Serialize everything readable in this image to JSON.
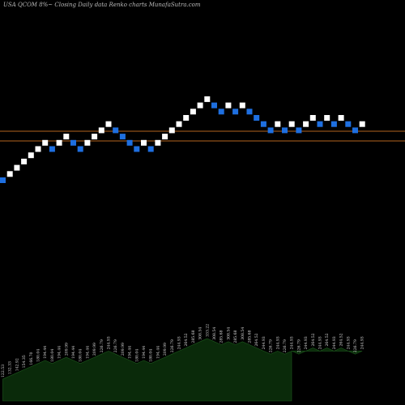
{
  "title": "USA QCOM 8%~  Closing Daily data  Renko  charts MunafaSutra.com",
  "colors": {
    "background": "#000000",
    "up_brick": "#ffffff",
    "down_brick": "#1e6fe0",
    "level_line": "#b3641e",
    "volume_fill": "#0a2a0a",
    "volume_edge": "#1e5a1e"
  },
  "chart_data": {
    "type": "renko",
    "y_scale": "log",
    "ylim": [
      42,
      260
    ],
    "levels": [
      188,
      162
    ],
    "bricks": [
      {
        "close": 122.53,
        "dir": "down"
      },
      {
        "close": 132.33,
        "dir": "up"
      },
      {
        "close": 142.92,
        "dir": "up"
      },
      {
        "close": 154.35,
        "dir": "up"
      },
      {
        "close": 166.7,
        "dir": "up"
      },
      {
        "close": 180.04,
        "dir": "up"
      },
      {
        "close": 194.44,
        "dir": "up"
      },
      {
        "close": 180.04,
        "dir": "down"
      },
      {
        "close": 194.44,
        "dir": "up"
      },
      {
        "close": 209.99,
        "dir": "up"
      },
      {
        "close": 194.44,
        "dir": "down"
      },
      {
        "close": 180.04,
        "dir": "down"
      },
      {
        "close": 194.44,
        "dir": "up"
      },
      {
        "close": 209.99,
        "dir": "up"
      },
      {
        "close": 226.79,
        "dir": "up"
      },
      {
        "close": 244.93,
        "dir": "up"
      },
      {
        "close": 226.79,
        "dir": "down"
      },
      {
        "close": 209.99,
        "dir": "down"
      },
      {
        "close": 194.44,
        "dir": "down"
      },
      {
        "close": 180.04,
        "dir": "down"
      },
      {
        "close": 194.44,
        "dir": "up"
      },
      {
        "close": 180.04,
        "dir": "down"
      },
      {
        "close": 194.44,
        "dir": "up"
      },
      {
        "close": 209.99,
        "dir": "up"
      },
      {
        "close": 226.79,
        "dir": "up"
      },
      {
        "close": 244.93,
        "dir": "up"
      },
      {
        "close": 264.52,
        "dir": "up"
      },
      {
        "close": 285.68,
        "dir": "up"
      },
      {
        "close": 308.54,
        "dir": "up"
      },
      {
        "close": 333.22,
        "dir": "up"
      },
      {
        "close": 308.54,
        "dir": "down"
      },
      {
        "close": 285.68,
        "dir": "down"
      },
      {
        "close": 308.54,
        "dir": "up"
      },
      {
        "close": 285.68,
        "dir": "down"
      },
      {
        "close": 308.54,
        "dir": "up"
      },
      {
        "close": 285.68,
        "dir": "down"
      },
      {
        "close": 264.52,
        "dir": "down"
      },
      {
        "close": 244.93,
        "dir": "down"
      },
      {
        "close": 226.79,
        "dir": "down"
      },
      {
        "close": 244.93,
        "dir": "up"
      },
      {
        "close": 226.79,
        "dir": "down"
      },
      {
        "close": 244.93,
        "dir": "up"
      },
      {
        "close": 226.79,
        "dir": "down"
      },
      {
        "close": 244.93,
        "dir": "up"
      },
      {
        "close": 264.52,
        "dir": "up"
      },
      {
        "close": 244.93,
        "dir": "down"
      },
      {
        "close": 264.52,
        "dir": "up"
      },
      {
        "close": 244.93,
        "dir": "down"
      },
      {
        "close": 264.52,
        "dir": "up"
      },
      {
        "close": 244.93,
        "dir": "down"
      },
      {
        "close": 226.79,
        "dir": "down"
      },
      {
        "close": 244.93,
        "dir": "up"
      }
    ],
    "volume_labels": [
      "122.53",
      "132.33",
      "142.92",
      "154.35",
      "166.70",
      "180.04",
      "194.44",
      "180.04",
      "194.44",
      "209.99",
      "194.44",
      "180.04",
      "194.44",
      "209.99",
      "226.79",
      "244.93",
      "226.79",
      "209.99",
      "194.44",
      "180.04",
      "194.44",
      "180.04",
      "194.44",
      "209.99",
      "226.79",
      "244.93",
      "264.52",
      "285.68",
      "308.54",
      "333.22",
      "308.54",
      "285.68",
      "308.54",
      "285.68",
      "308.54",
      "285.68",
      "264.52",
      "244.93",
      "226.79",
      "244.93",
      "226.79",
      "244.93",
      "226.79",
      "244.93",
      "264.52",
      "244.93",
      "264.52",
      "244.93",
      "264.52",
      "244.93",
      "226.79",
      "244.93"
    ]
  }
}
